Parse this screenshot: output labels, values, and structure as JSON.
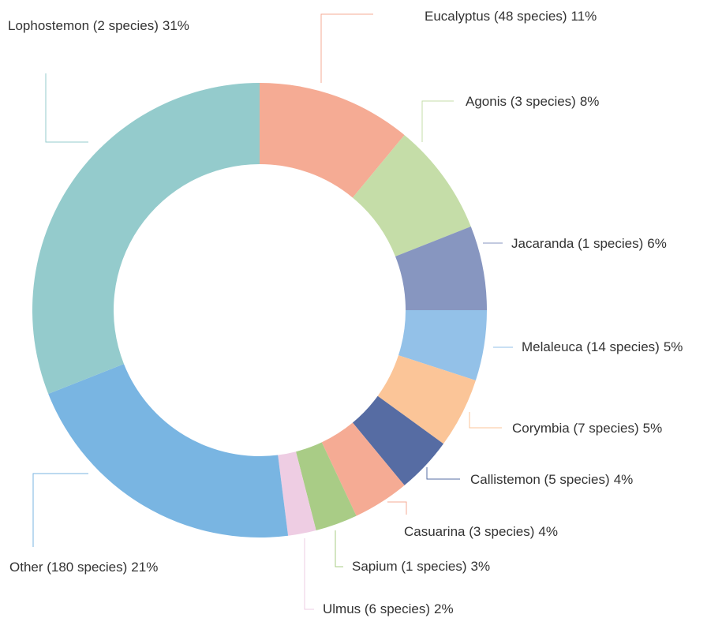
{
  "chart_data": {
    "type": "donut",
    "categories": [
      "Eucalyptus (48 species)",
      "Agonis (3 species)",
      "Jacaranda (1 species)",
      "Melaleuca (14 species)",
      "Corymbia (7 species)",
      "Callistemon (5 species)",
      "Casuarina (3 species)",
      "Sapium (1 species)",
      "Ulmus (6 species)",
      "Other (180 species)",
      "Lophostemon (2 species)"
    ],
    "values": [
      11,
      8,
      6,
      5,
      5,
      4,
      4,
      3,
      2,
      21,
      31
    ],
    "value_labels": [
      "11%",
      "8%",
      "6%",
      "5%",
      "5%",
      "4%",
      "4%",
      "3%",
      "2%",
      "21%",
      "31%"
    ],
    "colors": [
      "#f5ab94",
      "#c5dda8",
      "#8796c0",
      "#93c1e8",
      "#fbc598",
      "#566ca3",
      "#f5ab94",
      "#a9cc86",
      "#eecde3",
      "#79b5e2",
      "#94cbcc"
    ]
  }
}
